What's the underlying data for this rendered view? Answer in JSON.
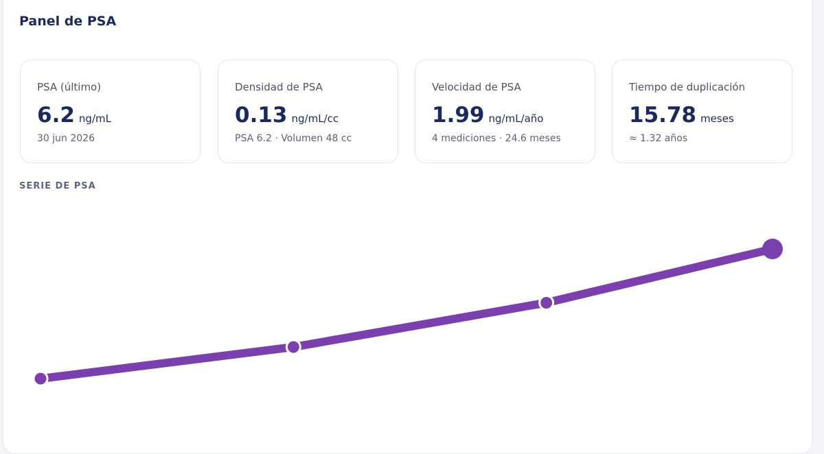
{
  "header": {
    "title": "Panel de PSA"
  },
  "cards": [
    {
      "label": "PSA (último)",
      "value": "6.2",
      "unit": "ng/mL",
      "note": "30 jun 2026"
    },
    {
      "label": "Densidad de PSA",
      "value": "0.13",
      "unit": "ng/mL/cc",
      "note": "PSA 6.2 · Volumen 48 cc"
    },
    {
      "label": "Velocidad de PSA",
      "value": "1.99",
      "unit": "ng/mL/año",
      "note": "4 mediciones · 24.6 meses"
    },
    {
      "label": "Tiempo de duplicación",
      "value": "15.78",
      "unit": "meses",
      "note": "≈ 1.32 años"
    }
  ],
  "chart_data": {
    "type": "line",
    "title": "SERIE DE PSA",
    "x": [
      0,
      8.5,
      17,
      24.6
    ],
    "xlim": [
      0,
      24.6
    ],
    "values": [
      2.1,
      3.1,
      4.5,
      6.2
    ],
    "ylim": [
      0,
      8
    ],
    "color": "#7b3fae"
  }
}
